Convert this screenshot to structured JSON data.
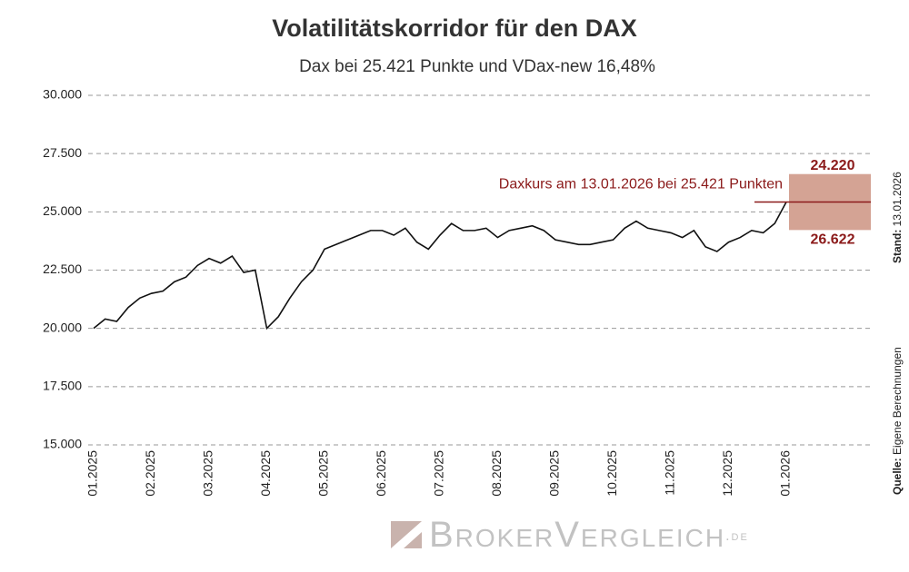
{
  "chart_data": {
    "type": "line",
    "title": "Volatilitätskorridor für den DAX",
    "subtitle": "Dax bei 25.421 Punkte und VDax-new 16,48%",
    "categories": [
      "01.2025",
      null,
      null,
      null,
      null,
      "02.2025",
      null,
      null,
      null,
      null,
      "03.2025",
      null,
      null,
      null,
      null,
      "04.2025",
      null,
      null,
      null,
      null,
      "05.2025",
      null,
      null,
      null,
      null,
      "06.2025",
      null,
      null,
      null,
      null,
      "07.2025",
      null,
      null,
      null,
      null,
      "08.2025",
      null,
      null,
      null,
      null,
      "09.2025",
      null,
      null,
      null,
      null,
      "10.2025",
      null,
      null,
      null,
      null,
      "11.2025",
      null,
      null,
      null,
      null,
      "12.2025",
      null,
      null,
      null,
      null,
      "01.2026"
    ],
    "values": [
      20000,
      20400,
      20300,
      20900,
      21300,
      21500,
      21600,
      22000,
      22200,
      22700,
      23000,
      22800,
      23100,
      22400,
      22500,
      20000,
      20500,
      21300,
      22000,
      22500,
      23400,
      23600,
      23800,
      24000,
      24200,
      24200,
      24000,
      24300,
      23700,
      23400,
      24000,
      24500,
      24200,
      24200,
      24300,
      23900,
      24200,
      24300,
      24400,
      24200,
      23800,
      23700,
      23600,
      23600,
      23700,
      23800,
      24300,
      24600,
      24300,
      24200,
      24100,
      23900,
      24200,
      23500,
      23300,
      23700,
      23900,
      24200,
      24100,
      24500,
      25421
    ],
    "color": "#111111",
    "ylim": [
      15000,
      30000
    ],
    "yticks": [
      {
        "value": 15000,
        "label": "15.000"
      },
      {
        "value": 17500,
        "label": "17.500"
      },
      {
        "value": 20000,
        "label": "20.000"
      },
      {
        "value": 22500,
        "label": "22.500"
      },
      {
        "value": 25000,
        "label": "25.000"
      },
      {
        "value": 27500,
        "label": "27.500"
      },
      {
        "value": 30000,
        "label": "30.000"
      }
    ],
    "grid": true,
    "annotation": "Daxkurs am 13.01.2026 bei 25.421 Punkten",
    "annotation_color": "#8b1a1a",
    "corridor": {
      "values": [
        24220,
        26622
      ],
      "value_labels": [
        "24.220",
        "26.622"
      ],
      "color": "#d4a394"
    },
    "stand_label": "Stand:",
    "stand_date": "13.01.2026",
    "source_label": "Quelle:",
    "source": "Eigene Berechnungen",
    "logo": "BrokerVergleich",
    "logo_suffix": ".de"
  }
}
